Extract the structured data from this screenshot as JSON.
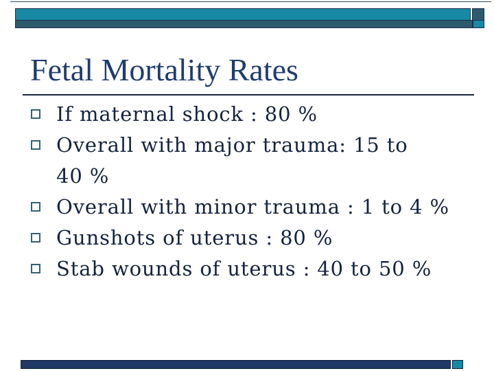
{
  "slide": {
    "title": "Fetal Mortality Rates",
    "bullets": [
      "If maternal shock : 80 %",
      "Overall with major trauma: 15 to 40 %",
      "Overall with minor trauma : 1 to 4 %",
      "Gunshots of uterus : 80 %",
      "Stab wounds of uterus : 40 to 50 %"
    ],
    "colors": {
      "accent_teal": "#1789a4",
      "accent_slate": "#2e5a6d",
      "bar_border_navy": "#1c2b4a",
      "title_navy": "#1f3c6d",
      "body_text": "#14233c",
      "rule_line": "#1b2440",
      "footer_navy": "#1f3864",
      "bullet_outline": "#35606e"
    }
  }
}
